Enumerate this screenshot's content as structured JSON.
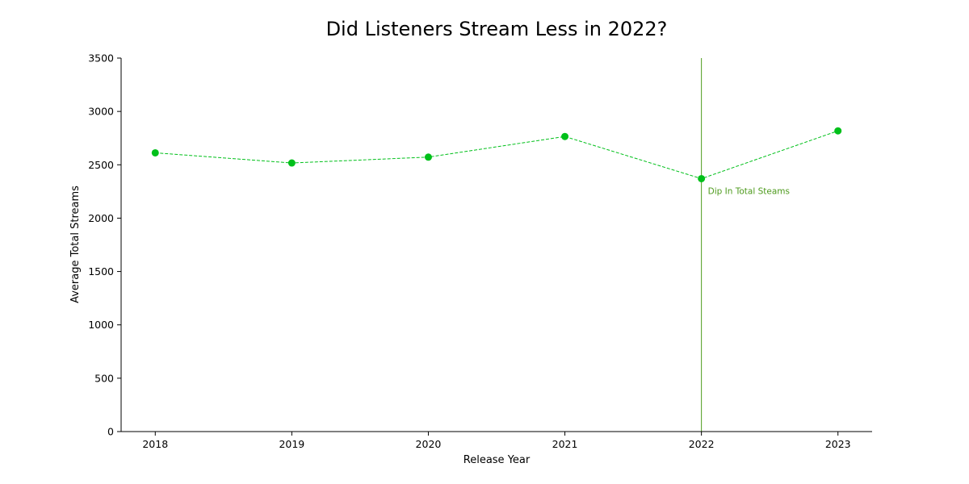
{
  "chart_data": {
    "type": "line",
    "title": "Did Listeners Stream Less in 2022?",
    "xlabel": "Release Year",
    "ylabel": "Average Total Streams",
    "x": [
      2018,
      2019,
      2020,
      2021,
      2022,
      2023
    ],
    "series": [
      {
        "values": [
          2612,
          2517,
          2572,
          2765,
          2370,
          2818
        ],
        "color": "#00c01a",
        "line_style": "dashed",
        "marker": "circle"
      }
    ],
    "xlim": [
      2017.75,
      2023.25
    ],
    "ylim": [
      0,
      3500
    ],
    "yticks": [
      0,
      500,
      1000,
      1500,
      2000,
      2500,
      3000,
      3500
    ],
    "xticks": [
      2018,
      2019,
      2020,
      2021,
      2022,
      2023
    ],
    "grid": false,
    "annotations": [
      {
        "x": 2022,
        "text": "Dip In Total Steams",
        "type": "vertical-line",
        "color": "#4d9a1c"
      }
    ]
  }
}
